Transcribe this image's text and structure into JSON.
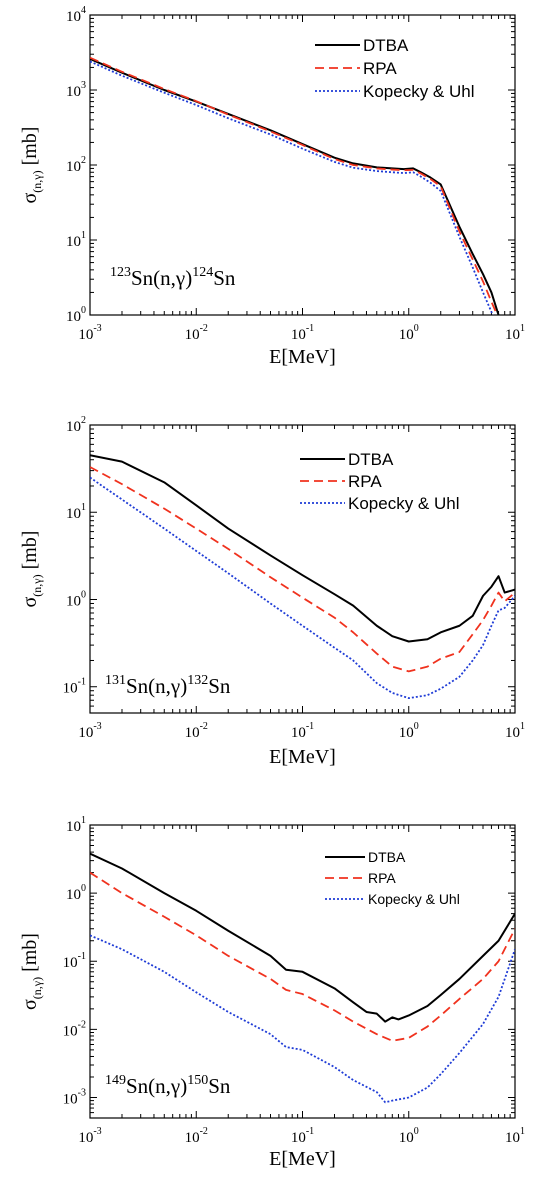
{
  "chart_data": [
    {
      "type": "line",
      "xscale": "log",
      "yscale": "log",
      "xlim": [
        0.001,
        10
      ],
      "ylim": [
        1,
        10000
      ],
      "xlabel": "E[MeV]",
      "ylabel": {
        "main": "σ",
        "sub": "(n,γ)",
        "unit": "[mb]"
      },
      "xticks": [
        {
          "value": 0.001,
          "base": "10",
          "exp": "-3"
        },
        {
          "value": 0.01,
          "base": "10",
          "exp": "-2"
        },
        {
          "value": 0.1,
          "base": "10",
          "exp": "-1"
        },
        {
          "value": 1,
          "base": "10",
          "exp": "0"
        },
        {
          "value": 10,
          "base": "10",
          "exp": "1"
        }
      ],
      "yticks": [
        {
          "value": 1,
          "base": "10",
          "exp": "0"
        },
        {
          "value": 10,
          "base": "10",
          "exp": "1"
        },
        {
          "value": 100,
          "base": "10",
          "exp": "2"
        },
        {
          "value": 1000,
          "base": "10",
          "exp": "3"
        },
        {
          "value": 10000,
          "base": "10",
          "exp": "4"
        }
      ],
      "annotation": {
        "a1": "123",
        "t1": "Sn(n,γ)",
        "a2": "124",
        "t2": "Sn"
      },
      "legend_position": "top-right",
      "series": [
        {
          "name": "DTBA",
          "color": "#000000",
          "dash": "solid",
          "points": [
            [
              0.001,
              2600
            ],
            [
              0.002,
              1700
            ],
            [
              0.005,
              1000
            ],
            [
              0.01,
              700
            ],
            [
              0.02,
              480
            ],
            [
              0.05,
              290
            ],
            [
              0.1,
              190
            ],
            [
              0.2,
              125
            ],
            [
              0.3,
              105
            ],
            [
              0.5,
              93
            ],
            [
              0.7,
              90
            ],
            [
              0.9,
              88
            ],
            [
              1.1,
              90
            ],
            [
              1.3,
              80
            ],
            [
              1.6,
              68
            ],
            [
              2.0,
              55
            ],
            [
              3.0,
              15
            ],
            [
              4.0,
              6.5
            ],
            [
              5.0,
              3.5
            ],
            [
              6.0,
              2.0
            ],
            [
              7.0,
              1.0
            ]
          ]
        },
        {
          "name": "RPA",
          "color": "#f0321e",
          "dash": "dashed",
          "points": [
            [
              0.001,
              2700
            ],
            [
              0.002,
              1750
            ],
            [
              0.005,
              1030
            ],
            [
              0.01,
              710
            ],
            [
              0.02,
              470
            ],
            [
              0.05,
              280
            ],
            [
              0.1,
              185
            ],
            [
              0.2,
              120
            ],
            [
              0.3,
              100
            ],
            [
              0.5,
              90
            ],
            [
              0.7,
              87
            ],
            [
              0.9,
              85
            ],
            [
              1.1,
              86
            ],
            [
              1.3,
              77
            ],
            [
              1.6,
              65
            ],
            [
              2.0,
              52
            ],
            [
              3.0,
              13
            ],
            [
              4.0,
              5.5
            ],
            [
              5.0,
              2.8
            ],
            [
              6.0,
              1.5
            ],
            [
              6.8,
              1.0
            ]
          ]
        },
        {
          "name": "Kopecky & Uhl",
          "color": "#1f3cd6",
          "dash": "dotted",
          "points": [
            [
              0.001,
              2400
            ],
            [
              0.002,
              1550
            ],
            [
              0.005,
              920
            ],
            [
              0.01,
              630
            ],
            [
              0.02,
              420
            ],
            [
              0.05,
              255
            ],
            [
              0.1,
              165
            ],
            [
              0.2,
              110
            ],
            [
              0.3,
              92
            ],
            [
              0.5,
              83
            ],
            [
              0.7,
              80
            ],
            [
              0.9,
              78
            ],
            [
              1.1,
              80
            ],
            [
              1.3,
              70
            ],
            [
              1.6,
              58
            ],
            [
              2.0,
              45
            ],
            [
              3.0,
              11
            ],
            [
              4.0,
              4.3
            ],
            [
              5.0,
              2.0
            ],
            [
              6.0,
              1.1
            ],
            [
              6.2,
              1.0
            ]
          ]
        }
      ]
    },
    {
      "type": "line",
      "xscale": "log",
      "yscale": "log",
      "xlim": [
        0.001,
        10
      ],
      "ylim": [
        0.05,
        100
      ],
      "xlabel": "E[MeV]",
      "ylabel": {
        "main": "σ",
        "sub": "(n,γ)",
        "unit": "[mb]"
      },
      "xticks": [
        {
          "value": 0.001,
          "base": "10",
          "exp": "-3"
        },
        {
          "value": 0.01,
          "base": "10",
          "exp": "-2"
        },
        {
          "value": 0.1,
          "base": "10",
          "exp": "-1"
        },
        {
          "value": 1,
          "base": "10",
          "exp": "0"
        },
        {
          "value": 10,
          "base": "10",
          "exp": "1"
        }
      ],
      "yticks": [
        {
          "value": 0.1,
          "base": "10",
          "exp": "-1"
        },
        {
          "value": 1,
          "base": "10",
          "exp": "0"
        },
        {
          "value": 10,
          "base": "10",
          "exp": "1"
        },
        {
          "value": 100,
          "base": "10",
          "exp": "2"
        }
      ],
      "annotation": {
        "a1": "131",
        "t1": "Sn(n,γ)",
        "a2": "132",
        "t2": "Sn"
      },
      "legend_position": "top-right",
      "series": [
        {
          "name": "DTBA",
          "color": "#000000",
          "dash": "solid",
          "points": [
            [
              0.001,
              45
            ],
            [
              0.002,
              38
            ],
            [
              0.005,
              22
            ],
            [
              0.01,
              12
            ],
            [
              0.02,
              6.5
            ],
            [
              0.05,
              3.2
            ],
            [
              0.1,
              1.9
            ],
            [
              0.2,
              1.15
            ],
            [
              0.3,
              0.85
            ],
            [
              0.5,
              0.5
            ],
            [
              0.7,
              0.38
            ],
            [
              1.0,
              0.33
            ],
            [
              1.5,
              0.35
            ],
            [
              2.0,
              0.42
            ],
            [
              3.0,
              0.5
            ],
            [
              4.0,
              0.65
            ],
            [
              5.0,
              1.1
            ],
            [
              6.0,
              1.4
            ],
            [
              7.0,
              1.85
            ],
            [
              8.0,
              1.2
            ],
            [
              10.0,
              1.3
            ]
          ]
        },
        {
          "name": "RPA",
          "color": "#f0321e",
          "dash": "dashed",
          "points": [
            [
              0.001,
              33
            ],
            [
              0.002,
              21
            ],
            [
              0.005,
              11
            ],
            [
              0.01,
              6.5
            ],
            [
              0.02,
              3.8
            ],
            [
              0.05,
              1.8
            ],
            [
              0.1,
              1.05
            ],
            [
              0.2,
              0.62
            ],
            [
              0.3,
              0.42
            ],
            [
              0.5,
              0.24
            ],
            [
              0.7,
              0.17
            ],
            [
              1.0,
              0.15
            ],
            [
              1.5,
              0.17
            ],
            [
              2.0,
              0.21
            ],
            [
              3.0,
              0.25
            ],
            [
              4.0,
              0.4
            ],
            [
              5.0,
              0.58
            ],
            [
              6.0,
              0.85
            ],
            [
              7.0,
              1.2
            ],
            [
              8.0,
              0.95
            ],
            [
              10.0,
              1.2
            ]
          ]
        },
        {
          "name": "Kopecky & Uhl",
          "color": "#1f3cd6",
          "dash": "dotted",
          "points": [
            [
              0.001,
              25
            ],
            [
              0.002,
              14
            ],
            [
              0.005,
              6.5
            ],
            [
              0.01,
              3.6
            ],
            [
              0.02,
              2.0
            ],
            [
              0.05,
              0.9
            ],
            [
              0.1,
              0.5
            ],
            [
              0.2,
              0.28
            ],
            [
              0.3,
              0.2
            ],
            [
              0.5,
              0.11
            ],
            [
              0.7,
              0.085
            ],
            [
              1.0,
              0.074
            ],
            [
              1.5,
              0.08
            ],
            [
              2.0,
              0.095
            ],
            [
              3.0,
              0.13
            ],
            [
              4.0,
              0.2
            ],
            [
              5.0,
              0.3
            ],
            [
              6.0,
              0.5
            ],
            [
              7.0,
              0.75
            ],
            [
              8.0,
              0.8
            ],
            [
              10.0,
              1.1
            ]
          ]
        }
      ]
    },
    {
      "type": "line",
      "xscale": "log",
      "yscale": "log",
      "xlim": [
        0.001,
        10
      ],
      "ylim": [
        0.0005,
        10
      ],
      "xlabel": "E[MeV]",
      "ylabel": {
        "main": "σ",
        "sub": "(n,γ)",
        "unit": "[mb]"
      },
      "xticks": [
        {
          "value": 0.001,
          "base": "10",
          "exp": "-3"
        },
        {
          "value": 0.01,
          "base": "10",
          "exp": "-2"
        },
        {
          "value": 0.1,
          "base": "10",
          "exp": "-1"
        },
        {
          "value": 1,
          "base": "10",
          "exp": "0"
        },
        {
          "value": 10,
          "base": "10",
          "exp": "1"
        }
      ],
      "yticks": [
        {
          "value": 0.001,
          "base": "10",
          "exp": "-3"
        },
        {
          "value": 0.01,
          "base": "10",
          "exp": "-2"
        },
        {
          "value": 0.1,
          "base": "10",
          "exp": "-1"
        },
        {
          "value": 1,
          "base": "10",
          "exp": "0"
        },
        {
          "value": 10,
          "base": "10",
          "exp": "1"
        }
      ],
      "annotation": {
        "a1": "149",
        "t1": "Sn(n,γ)",
        "a2": "150",
        "t2": "Sn"
      },
      "legend_position": "top-right",
      "series": [
        {
          "name": "DTBA",
          "color": "#000000",
          "dash": "solid",
          "points": [
            [
              0.001,
              3.8
            ],
            [
              0.002,
              2.3
            ],
            [
              0.005,
              1.0
            ],
            [
              0.01,
              0.55
            ],
            [
              0.02,
              0.28
            ],
            [
              0.05,
              0.12
            ],
            [
              0.07,
              0.075
            ],
            [
              0.1,
              0.07
            ],
            [
              0.2,
              0.04
            ],
            [
              0.3,
              0.025
            ],
            [
              0.4,
              0.018
            ],
            [
              0.5,
              0.017
            ],
            [
              0.6,
              0.013
            ],
            [
              0.7,
              0.015
            ],
            [
              0.8,
              0.014
            ],
            [
              1.0,
              0.016
            ],
            [
              1.5,
              0.022
            ],
            [
              2.0,
              0.032
            ],
            [
              3.0,
              0.055
            ],
            [
              5.0,
              0.12
            ],
            [
              7.0,
              0.2
            ],
            [
              10.0,
              0.5
            ]
          ]
        },
        {
          "name": "RPA",
          "color": "#f0321e",
          "dash": "dashed",
          "points": [
            [
              0.001,
              2.0
            ],
            [
              0.002,
              1.0
            ],
            [
              0.005,
              0.45
            ],
            [
              0.01,
              0.24
            ],
            [
              0.02,
              0.12
            ],
            [
              0.05,
              0.055
            ],
            [
              0.07,
              0.038
            ],
            [
              0.1,
              0.033
            ],
            [
              0.2,
              0.019
            ],
            [
              0.3,
              0.013
            ],
            [
              0.5,
              0.0085
            ],
            [
              0.7,
              0.0068
            ],
            [
              1.0,
              0.0075
            ],
            [
              1.5,
              0.011
            ],
            [
              2.0,
              0.016
            ],
            [
              3.0,
              0.028
            ],
            [
              5.0,
              0.055
            ],
            [
              7.0,
              0.1
            ],
            [
              10.0,
              0.3
            ]
          ]
        },
        {
          "name": "Kopecky & Uhl",
          "color": "#1f3cd6",
          "dash": "dotted",
          "points": [
            [
              0.001,
              0.24
            ],
            [
              0.002,
              0.15
            ],
            [
              0.005,
              0.07
            ],
            [
              0.01,
              0.035
            ],
            [
              0.02,
              0.018
            ],
            [
              0.05,
              0.0085
            ],
            [
              0.07,
              0.0055
            ],
            [
              0.1,
              0.005
            ],
            [
              0.2,
              0.0028
            ],
            [
              0.3,
              0.0018
            ],
            [
              0.5,
              0.0012
            ],
            [
              0.6,
              0.00085
            ],
            [
              0.7,
              0.0009
            ],
            [
              1.0,
              0.001
            ],
            [
              1.5,
              0.0014
            ],
            [
              2.0,
              0.0022
            ],
            [
              3.0,
              0.0045
            ],
            [
              5.0,
              0.012
            ],
            [
              7.0,
              0.03
            ],
            [
              10.0,
              0.15
            ]
          ]
        }
      ]
    }
  ]
}
